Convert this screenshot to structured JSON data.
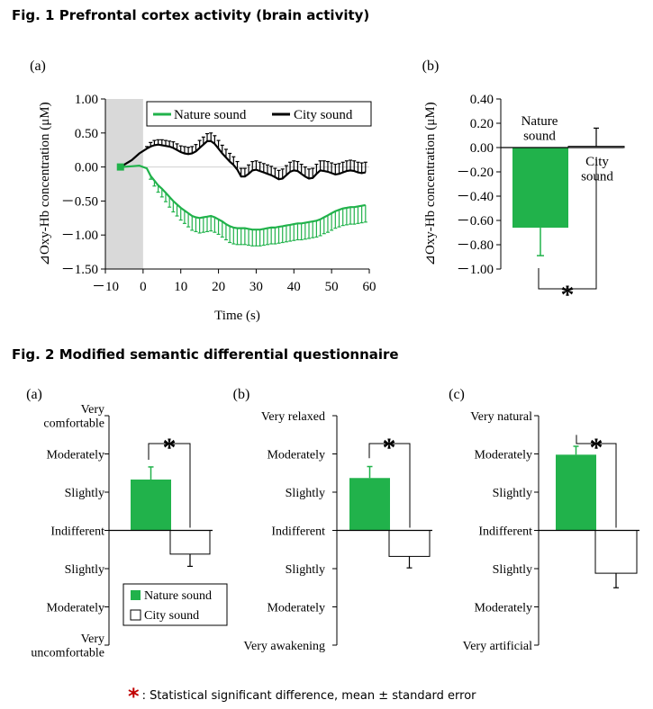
{
  "fig1": {
    "title": "Fig. 1 Prefrontal cortex activity (brain activity)"
  },
  "fig2": {
    "title": "Fig. 2 Modified semantic differential questionnaire"
  },
  "footnote": {
    "star": "*",
    "text": ": Statistical significant difference, mean ± standard error"
  },
  "colors": {
    "nature": "#21b24b",
    "city": "#000000",
    "star": "#c00000",
    "shade": "#d9d9d9"
  },
  "chart_data": [
    {
      "type": "line",
      "panel": "(a)",
      "xlabel": "Time (s)",
      "ylabel": "⊿Oxy-Hb concentration (μM)",
      "xlim": [
        -10,
        60
      ],
      "ylim": [
        -1.5,
        1.0
      ],
      "xticks": [
        -10,
        0,
        10,
        20,
        30,
        40,
        50,
        60
      ],
      "xtick_labels": [
        "－10",
        "0",
        "10",
        "20",
        "30",
        "40",
        "50",
        "60"
      ],
      "yticks": [
        1.0,
        0.5,
        0.0,
        -0.5,
        -1.0,
        -1.5
      ],
      "ytick_labels": [
        "1.00",
        "0.50",
        "0.00",
        "－0.50",
        "－1.00",
        "－1.50"
      ],
      "shaded_region": [
        -10,
        0
      ],
      "legend_position": "top",
      "series": [
        {
          "name": "Nature sound",
          "x": [
            -6,
            -3,
            -1,
            1,
            2,
            3,
            4,
            5,
            6,
            7,
            8,
            9,
            10,
            11,
            12,
            13,
            14,
            15,
            16,
            17,
            18,
            19,
            20,
            21,
            22,
            23,
            24,
            25,
            26,
            27,
            28,
            29,
            30,
            31,
            32,
            33,
            34,
            35,
            36,
            37,
            38,
            39,
            40,
            41,
            42,
            43,
            44,
            45,
            46,
            47,
            48,
            49,
            50,
            51,
            52,
            53,
            54,
            55,
            56,
            57,
            58,
            59
          ],
          "values": [
            0.0,
            0.01,
            0.02,
            -0.02,
            -0.13,
            -0.2,
            -0.27,
            -0.32,
            -0.38,
            -0.44,
            -0.5,
            -0.55,
            -0.6,
            -0.64,
            -0.68,
            -0.72,
            -0.74,
            -0.75,
            -0.74,
            -0.73,
            -0.72,
            -0.74,
            -0.77,
            -0.8,
            -0.84,
            -0.87,
            -0.89,
            -0.9,
            -0.9,
            -0.9,
            -0.91,
            -0.92,
            -0.92,
            -0.92,
            -0.91,
            -0.9,
            -0.89,
            -0.89,
            -0.88,
            -0.87,
            -0.86,
            -0.85,
            -0.84,
            -0.83,
            -0.83,
            -0.82,
            -0.81,
            -0.8,
            -0.79,
            -0.77,
            -0.74,
            -0.71,
            -0.68,
            -0.65,
            -0.63,
            -0.61,
            -0.6,
            -0.59,
            -0.59,
            -0.58,
            -0.57,
            -0.56
          ],
          "error": [
            0.0,
            0.0,
            0.0,
            0.0,
            0.05,
            0.08,
            0.1,
            0.12,
            0.13,
            0.15,
            0.16,
            0.17,
            0.18,
            0.19,
            0.2,
            0.21,
            0.21,
            0.22,
            0.22,
            0.22,
            0.22,
            0.22,
            0.22,
            0.23,
            0.23,
            0.24,
            0.24,
            0.24,
            0.24,
            0.24,
            0.24,
            0.24,
            0.24,
            0.24,
            0.24,
            0.24,
            0.24,
            0.24,
            0.24,
            0.24,
            0.24,
            0.24,
            0.24,
            0.24,
            0.24,
            0.24,
            0.24,
            0.24,
            0.24,
            0.24,
            0.24,
            0.25,
            0.25,
            0.25,
            0.25,
            0.25,
            0.25,
            0.25,
            0.25,
            0.25,
            0.25,
            0.25
          ]
        },
        {
          "name": "City sound",
          "x": [
            -6,
            -3,
            -1,
            1,
            2,
            3,
            4,
            5,
            6,
            7,
            8,
            9,
            10,
            11,
            12,
            13,
            14,
            15,
            16,
            17,
            18,
            19,
            20,
            21,
            22,
            23,
            24,
            25,
            26,
            27,
            28,
            29,
            30,
            31,
            32,
            33,
            34,
            35,
            36,
            37,
            38,
            39,
            40,
            41,
            42,
            43,
            44,
            45,
            46,
            47,
            48,
            49,
            50,
            51,
            52,
            53,
            54,
            55,
            56,
            57,
            58,
            59
          ],
          "values": [
            0.0,
            0.1,
            0.2,
            0.27,
            0.3,
            0.32,
            0.33,
            0.32,
            0.31,
            0.3,
            0.28,
            0.25,
            0.22,
            0.2,
            0.19,
            0.2,
            0.23,
            0.28,
            0.33,
            0.38,
            0.38,
            0.34,
            0.27,
            0.2,
            0.14,
            0.08,
            0.03,
            -0.04,
            -0.14,
            -0.14,
            -0.1,
            -0.05,
            -0.04,
            -0.06,
            -0.08,
            -0.1,
            -0.12,
            -0.15,
            -0.18,
            -0.17,
            -0.12,
            -0.07,
            -0.05,
            -0.06,
            -0.1,
            -0.14,
            -0.17,
            -0.16,
            -0.1,
            -0.05,
            -0.06,
            -0.07,
            -0.09,
            -0.11,
            -0.1,
            -0.08,
            -0.06,
            -0.05,
            -0.06,
            -0.08,
            -0.09,
            -0.08
          ],
          "error": [
            0.0,
            0.0,
            0.0,
            0.03,
            0.06,
            0.07,
            0.07,
            0.08,
            0.08,
            0.08,
            0.09,
            0.09,
            0.09,
            0.1,
            0.1,
            0.1,
            0.1,
            0.11,
            0.11,
            0.11,
            0.12,
            0.12,
            0.12,
            0.12,
            0.12,
            0.12,
            0.12,
            0.12,
            0.12,
            0.12,
            0.13,
            0.13,
            0.13,
            0.13,
            0.13,
            0.13,
            0.13,
            0.13,
            0.13,
            0.14,
            0.14,
            0.14,
            0.14,
            0.14,
            0.14,
            0.14,
            0.14,
            0.14,
            0.14,
            0.14,
            0.15,
            0.15,
            0.15,
            0.15,
            0.15,
            0.15,
            0.15,
            0.15,
            0.15,
            0.15,
            0.15,
            0.15
          ]
        }
      ]
    },
    {
      "type": "bar",
      "panel": "(b)",
      "ylabel": "⊿Oxy-Hb concentration (μM)",
      "ylim": [
        -1.0,
        0.4
      ],
      "yticks": [
        0.4,
        0.2,
        0.0,
        -0.2,
        -0.4,
        -0.6,
        -0.8,
        -1.0
      ],
      "ytick_labels": [
        "0.40",
        "0.20",
        "0.00",
        "－0.20",
        "－0.40",
        "－0.60",
        "－0.80",
        "－1.00"
      ],
      "categories": [
        "Nature\nsound",
        "City\nsound"
      ],
      "values": [
        -0.66,
        0.01
      ],
      "error": [
        0.23,
        0.15
      ],
      "significance": "*"
    },
    {
      "type": "bar",
      "panel": "(a)",
      "ylim": [
        -3,
        3
      ],
      "ytick_labels": [
        "Very\ncomfortable",
        "Moderately",
        "Slightly",
        "Indifferent",
        "Slightly",
        "Moderately",
        "Very\nuncomfortable"
      ],
      "categories": [
        "Nature sound",
        "City sound"
      ],
      "values": [
        1.33,
        -0.62
      ],
      "error": [
        0.33,
        0.32
      ],
      "significance": "*",
      "legend_position": "bottom-right"
    },
    {
      "type": "bar",
      "panel": "(b)",
      "ylim": [
        -3,
        3
      ],
      "ytick_labels": [
        "Very relaxed",
        "Moderately",
        "Slightly",
        "Indifferent",
        "Slightly",
        "Moderately",
        "Very awakening"
      ],
      "categories": [
        "Nature sound",
        "City sound"
      ],
      "values": [
        1.37,
        -0.68
      ],
      "error": [
        0.3,
        0.3
      ],
      "significance": "*"
    },
    {
      "type": "bar",
      "panel": "(c)",
      "ylim": [
        -3,
        3
      ],
      "ytick_labels": [
        "Very natural",
        "Moderately",
        "Slightly",
        "Indifferent",
        "Slightly",
        "Moderately",
        "Very artificial"
      ],
      "categories": [
        "Nature sound",
        "City sound"
      ],
      "values": [
        1.98,
        -1.12
      ],
      "error": [
        0.22,
        0.38
      ],
      "significance": "*"
    }
  ]
}
